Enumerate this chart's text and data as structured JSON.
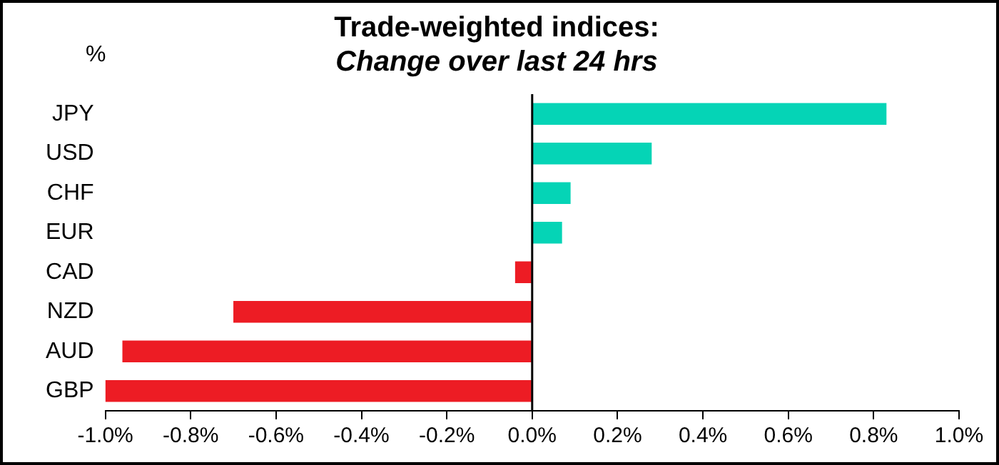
{
  "chart_data": {
    "type": "bar",
    "orientation": "horizontal",
    "title": "Trade-weighted indices:",
    "subtitle": "Change over last 24 hrs",
    "ylabel": "%",
    "categories": [
      "JPY",
      "USD",
      "CHF",
      "EUR",
      "CAD",
      "NZD",
      "AUD",
      "GBP"
    ],
    "values": [
      0.83,
      0.28,
      0.09,
      0.07,
      -0.04,
      -0.7,
      -0.96,
      -1.0
    ],
    "colors": [
      "#05d4b6",
      "#05d4b6",
      "#05d4b6",
      "#05d4b6",
      "#ed1c24",
      "#ed1c24",
      "#ed1c24",
      "#ed1c24"
    ],
    "xlim": [
      -1.0,
      1.0
    ],
    "xticks": [
      {
        "value": -1.0,
        "label": "-1.0%"
      },
      {
        "value": -0.8,
        "label": "-0.8%"
      },
      {
        "value": -0.6,
        "label": "-0.6%"
      },
      {
        "value": -0.4,
        "label": "-0.4%"
      },
      {
        "value": -0.2,
        "label": "-0.2%"
      },
      {
        "value": 0,
        "label": "0.0%"
      },
      {
        "value": 0.2,
        "label": "0.2%"
      },
      {
        "value": 0.4,
        "label": "0.4%"
      },
      {
        "value": 0.6,
        "label": "0.6%"
      },
      {
        "value": 0.8,
        "label": "0.8%"
      },
      {
        "value": 1.0,
        "label": "1.0%"
      }
    ],
    "legend": false
  }
}
